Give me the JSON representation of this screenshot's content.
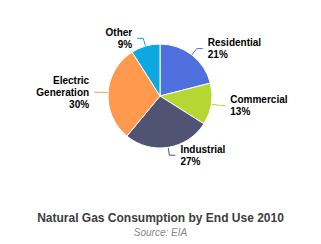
{
  "chart_data": {
    "type": "pie",
    "title": "Natural Gas Consumption by End Use 2010",
    "subtitle": "Source: EIA",
    "categories": [
      "Residential\n21%",
      "Commercial\n13%",
      "Industrial\n27%",
      "Electric\nGeneration\n30%",
      "Other\n9%"
    ],
    "values": [
      21,
      13,
      27,
      30,
      9
    ],
    "legend": false
  }
}
